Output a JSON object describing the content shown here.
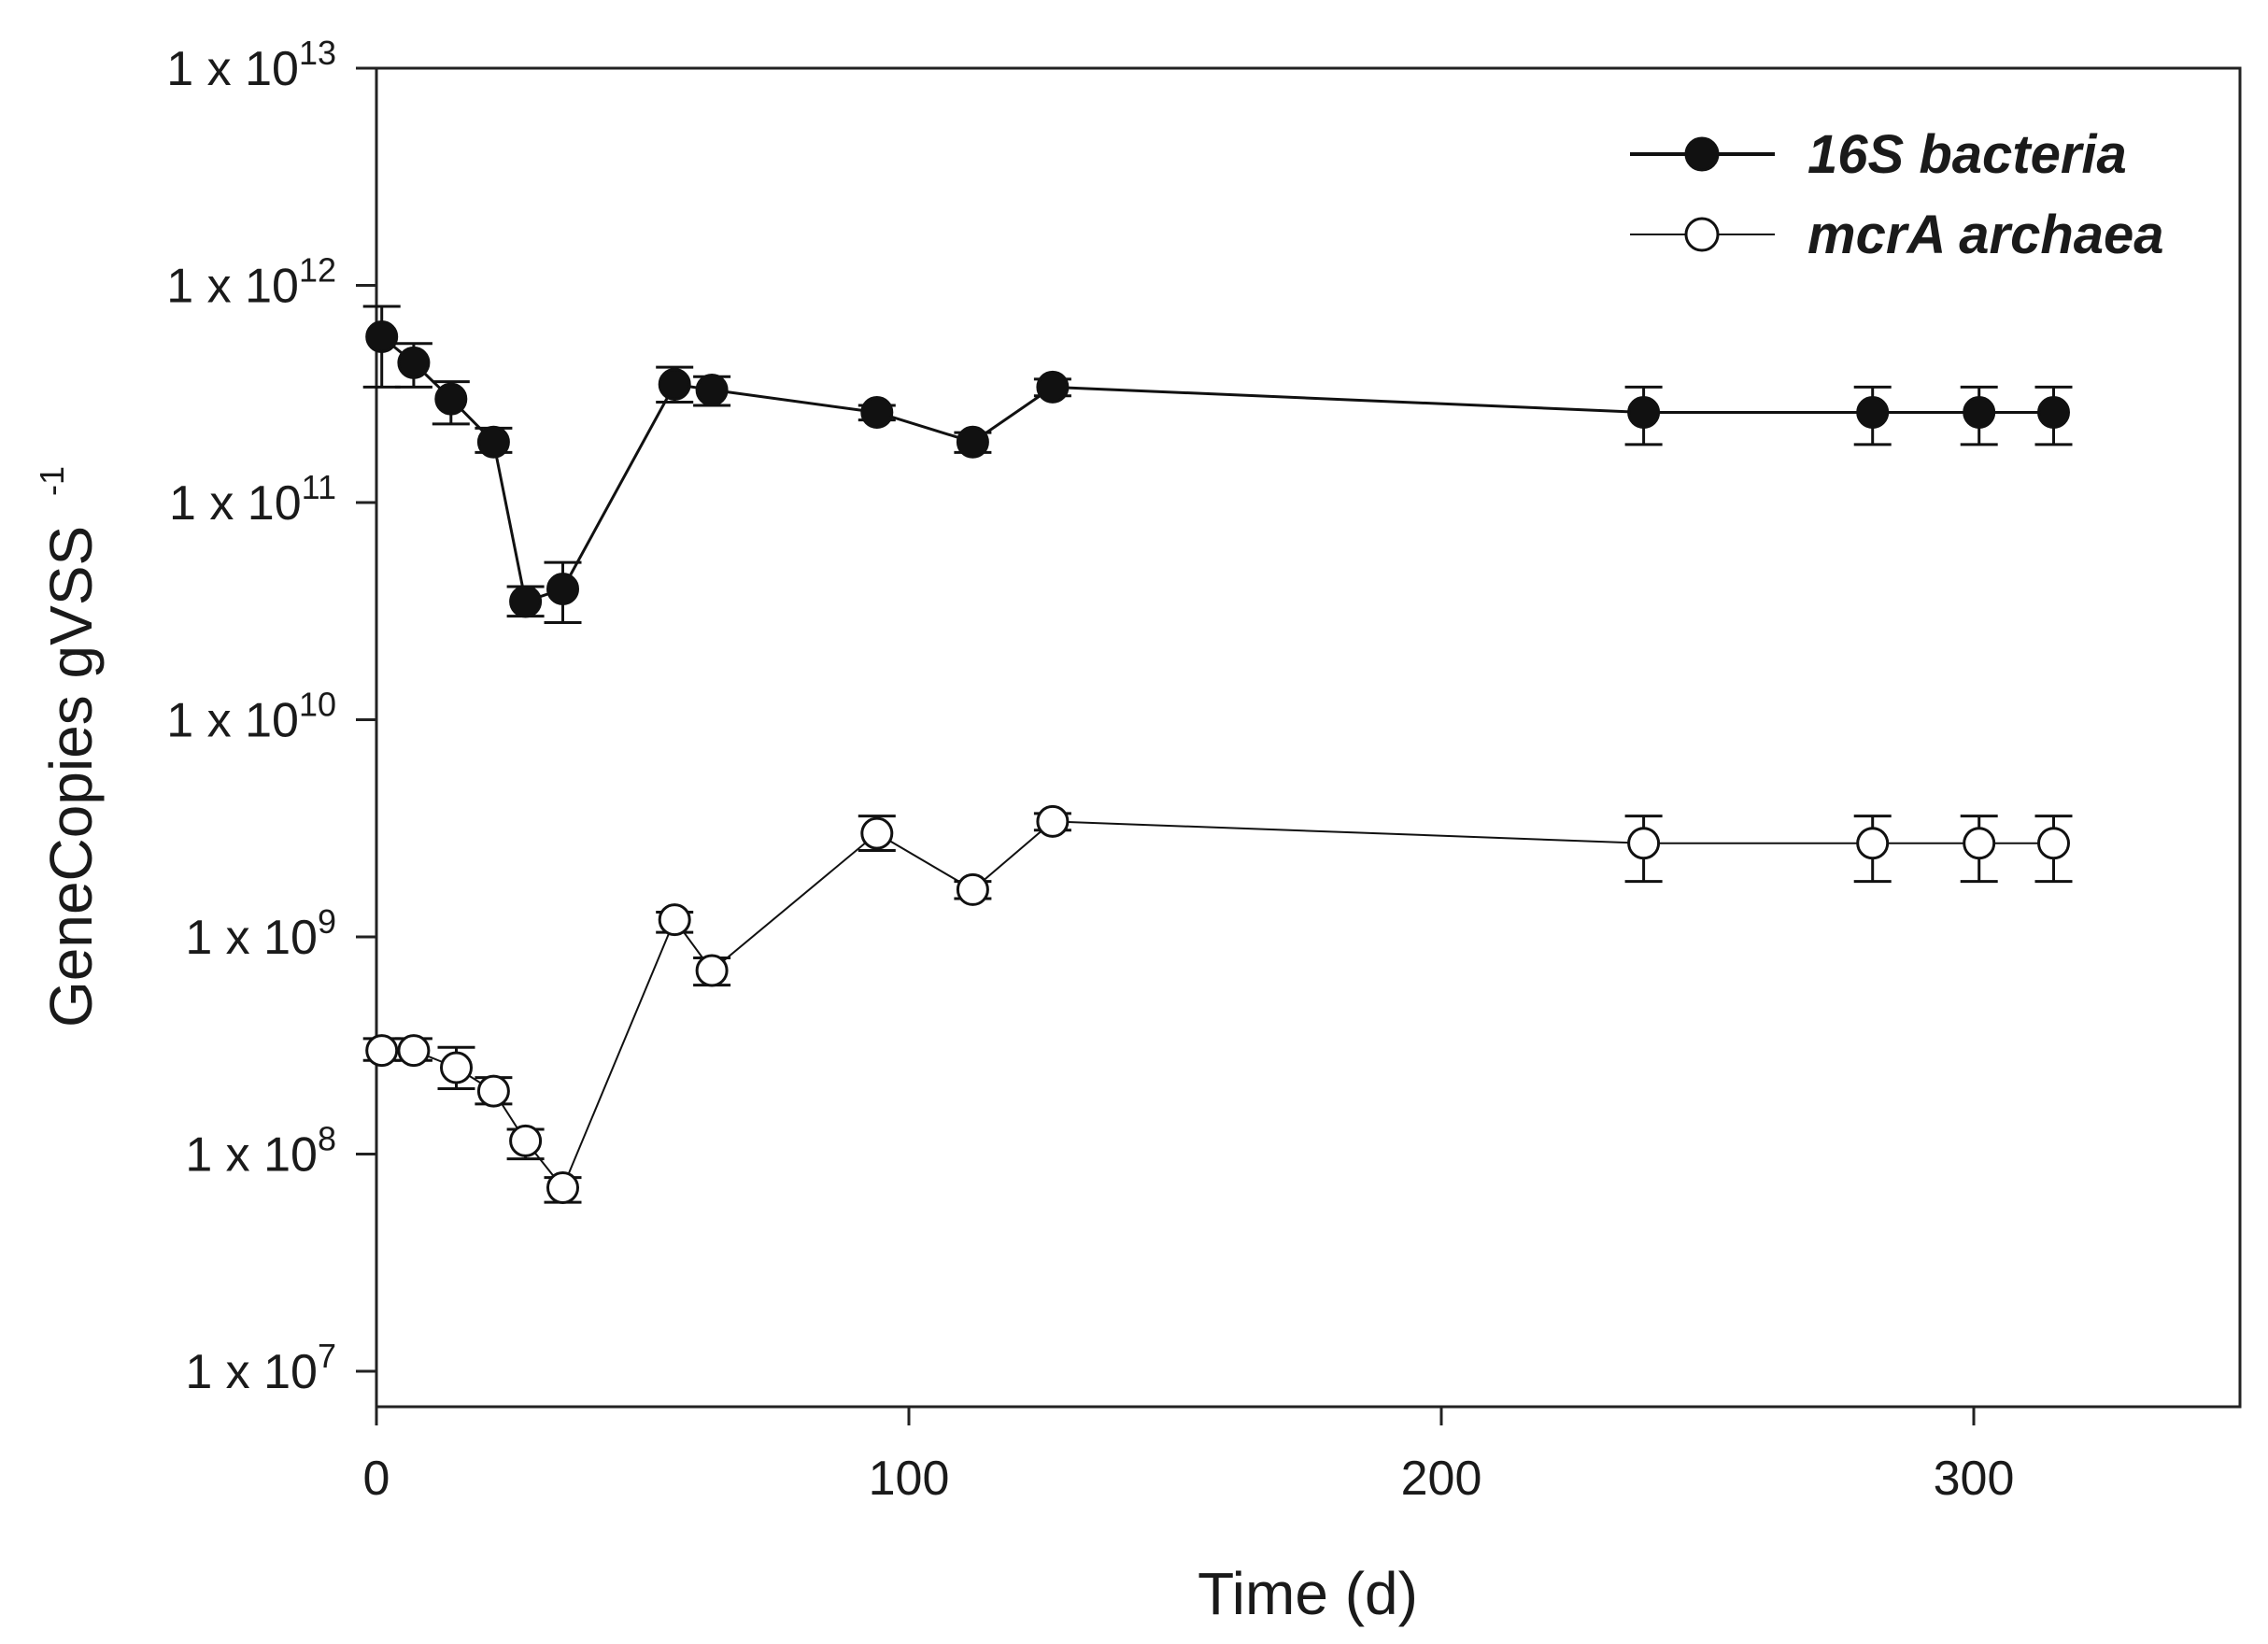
{
  "chart_data": {
    "type": "line",
    "title": "",
    "xlabel": "Time (d)",
    "ylabel": "GeneCopies gVSS",
    "ylabel_superscript": "-1",
    "yscale": "log",
    "xlim": [
      0,
      350
    ],
    "ylim": [
      5000000.0,
      10000000000000.0
    ],
    "x_ticks": [
      0,
      100,
      200,
      300
    ],
    "x_tick_labels": [
      "0",
      "100",
      "200",
      "300"
    ],
    "y_ticks": [
      {
        "value": 10000000.0,
        "mantissa": "1 x 10",
        "exponent": "7"
      },
      {
        "value": 100000000.0,
        "mantissa": "1 x 10",
        "exponent": "8"
      },
      {
        "value": 1000000000.0,
        "mantissa": "1 x 10",
        "exponent": "9"
      },
      {
        "value": 10000000000.0,
        "mantissa": "1 x 10",
        "exponent": "10"
      },
      {
        "value": 100000000000.0,
        "mantissa": "1 x 10",
        "exponent": "11"
      },
      {
        "value": 1000000000000.0,
        "mantissa": "1 x 10",
        "exponent": "12"
      },
      {
        "value": 10000000000000.0,
        "mantissa": "1 x 10",
        "exponent": "13"
      }
    ],
    "legend_position": "top-right",
    "series": [
      {
        "name": "16S bacteria",
        "marker": "filled-circle",
        "color": "#111111",
        "x": [
          1,
          7,
          14,
          22,
          28,
          35,
          56,
          63,
          94,
          112,
          127,
          238,
          281,
          301,
          315
        ],
        "y": [
          580000000000.0,
          440000000000.0,
          300000000000.0,
          190000000000.0,
          35000000000.0,
          40000000000.0,
          350000000000.0,
          330000000000.0,
          260000000000.0,
          190000000000.0,
          340000000000.0,
          260000000000.0,
          260000000000.0,
          260000000000.0,
          260000000000.0
        ],
        "y_err_low": [
          340000000000.0,
          340000000000.0,
          230000000000.0,
          170000000000.0,
          30000000000.0,
          28000000000.0,
          290000000000.0,
          280000000000.0,
          240000000000.0,
          170000000000.0,
          310000000000.0,
          185000000000.0,
          185000000000.0,
          185000000000.0,
          185000000000.0
        ],
        "y_err_high": [
          800000000000.0,
          540000000000.0,
          360000000000.0,
          220000000000.0,
          41000000000.0,
          53000000000.0,
          420000000000.0,
          380000000000.0,
          280000000000.0,
          210000000000.0,
          370000000000.0,
          340000000000.0,
          340000000000.0,
          340000000000.0,
          340000000000.0
        ]
      },
      {
        "name": "mcrA archaea",
        "marker": "open-circle",
        "color": "#111111",
        "x": [
          1,
          7,
          15,
          22,
          28,
          35,
          56,
          63,
          94,
          112,
          127,
          238,
          281,
          301,
          315
        ],
        "y": [
          300000000.0,
          300000000.0,
          250000000.0,
          195000000.0,
          115000000.0,
          70000000.0,
          1200000000.0,
          700000000.0,
          3000000000.0,
          1650000000.0,
          3400000000.0,
          2700000000.0,
          2700000000.0,
          2700000000.0,
          2700000000.0
        ],
        "y_err_low": [
          270000000.0,
          270000000.0,
          200000000.0,
          170000000.0,
          95000000.0,
          60000000.0,
          1050000000.0,
          600000000.0,
          2500000000.0,
          1500000000.0,
          3100000000.0,
          1800000000.0,
          1800000000.0,
          1800000000.0,
          1800000000.0
        ],
        "y_err_high": [
          340000000.0,
          340000000.0,
          310000000.0,
          225000000.0,
          130000000.0,
          78000000.0,
          1300000000.0,
          800000000.0,
          3600000000.0,
          1800000000.0,
          3700000000.0,
          3600000000.0,
          3600000000.0,
          3600000000.0,
          3600000000.0
        ]
      }
    ]
  }
}
